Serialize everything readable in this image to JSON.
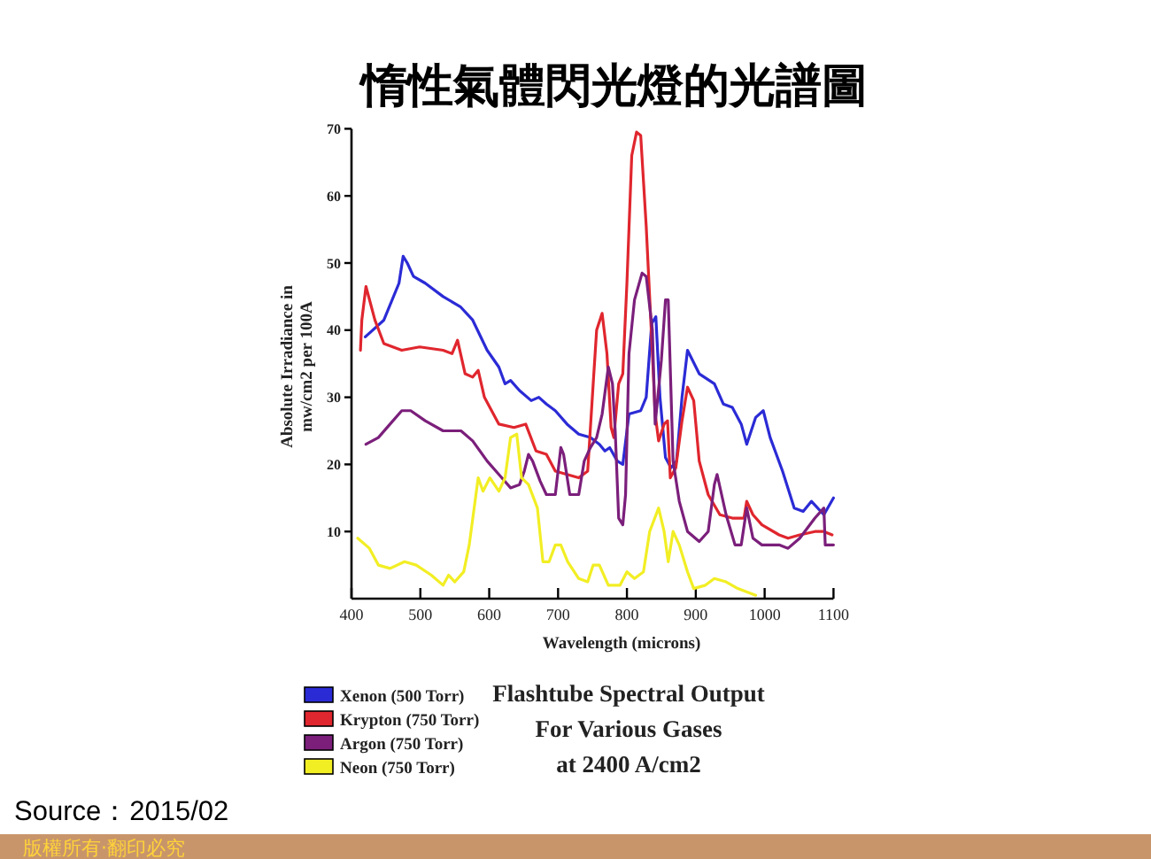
{
  "chart_data": {
    "type": "line",
    "title": "惰性氣體閃光燈的光譜圖",
    "subtitle": "Flashtube Spectral Output\nFor Various Gases\nat 2400 A/cm2",
    "xlabel": "Wavelength (microns)",
    "ylabel": "Absolute Irradiance in\nmw/cm2 per 100A",
    "xlim": [
      400,
      1100
    ],
    "xticks": [
      400,
      500,
      600,
      700,
      800,
      900,
      1000,
      1100
    ],
    "ylim": [
      0,
      70
    ],
    "yticks": [
      10,
      20,
      30,
      40,
      50,
      60,
      70
    ],
    "legend": "bottom left",
    "marker": "none",
    "line_style": "solid",
    "annotations": [
      "Source：2015/02",
      "版權所有‧翻印必究"
    ],
    "series": [
      {
        "name": "Xenon (500 Torr)",
        "color": "#2b2bd6",
        "x": [
          420,
          447,
          469,
          475,
          481,
          490,
          507,
          533,
          558,
          576,
          597,
          614,
          623,
          631,
          644,
          661,
          672,
          683,
          696,
          713,
          730,
          747,
          760,
          768,
          775,
          786,
          794,
          803,
          820,
          828,
          836,
          842,
          848,
          856,
          864,
          872,
          880,
          888,
          905,
          927,
          940,
          953,
          966,
          974,
          987,
          998,
          1008,
          1026,
          1043,
          1056,
          1068,
          1086,
          1100
        ],
        "values": [
          39,
          41.5,
          47,
          51,
          50,
          48,
          47,
          45,
          43.5,
          41.5,
          37,
          34.5,
          32,
          32.5,
          31,
          29.5,
          30,
          29,
          28,
          26,
          24.5,
          24,
          23,
          22,
          22.5,
          20.5,
          20,
          27.5,
          28,
          30,
          41,
          42,
          30,
          21,
          19.5,
          20.5,
          30,
          37,
          33.5,
          32,
          29,
          28.5,
          26,
          23,
          27,
          28,
          24,
          19,
          13.5,
          13,
          14.5,
          12.5,
          15
        ]
      },
      {
        "name": "Krypton (750 Torr)",
        "color": "#e0262e",
        "x": [
          413,
          415,
          421,
          434,
          447,
          473,
          499,
          533,
          546,
          554,
          565,
          576,
          584,
          593,
          614,
          636,
          653,
          668,
          683,
          696,
          730,
          743,
          751,
          756,
          764,
          771,
          777,
          781,
          788,
          794,
          800,
          807,
          814,
          820,
          828,
          837,
          841,
          846,
          854,
          859,
          863,
          871,
          880,
          888,
          897,
          905,
          918,
          935,
          953,
          970,
          974,
          983,
          996,
          1021,
          1034,
          1051,
          1073,
          1086,
          1098
        ],
        "values": [
          37,
          41.5,
          46.5,
          41.5,
          38,
          37,
          37.5,
          37,
          36.5,
          38.5,
          33.5,
          33,
          34,
          30,
          26,
          25.5,
          26,
          22,
          21.5,
          19,
          18,
          19,
          32,
          40,
          42.5,
          36.5,
          25.5,
          24,
          32,
          33.5,
          47,
          66,
          69.5,
          69,
          55.5,
          36.5,
          27.5,
          23.5,
          26,
          26.5,
          18,
          19.5,
          26.5,
          31.5,
          29.5,
          20.5,
          15.5,
          12.5,
          12,
          12,
          14.5,
          12.5,
          11,
          9.5,
          9,
          9.5,
          10,
          10,
          9.5
        ]
      },
      {
        "name": "Argon (750 Torr)",
        "color": "#7b1f7b",
        "x": [
          421,
          439,
          456,
          473,
          486,
          507,
          533,
          559,
          576,
          597,
          614,
          631,
          644,
          651,
          657,
          663,
          674,
          683,
          696,
          704,
          708,
          717,
          730,
          738,
          747,
          756,
          764,
          773,
          779,
          783,
          788,
          794,
          798,
          803,
          811,
          822,
          828,
          837,
          841,
          850,
          856,
          860,
          867,
          876,
          888,
          905,
          918,
          927,
          931,
          944,
          957,
          966,
          974,
          983,
          996,
          1021,
          1034,
          1051,
          1073,
          1086,
          1088,
          1100
        ],
        "values": [
          23,
          24,
          26,
          28,
          28,
          26.5,
          25,
          25,
          23.5,
          20.5,
          18.5,
          16.5,
          17,
          19,
          21.5,
          20.5,
          17.5,
          15.5,
          15.5,
          22.5,
          21.5,
          15.5,
          15.5,
          20.5,
          22.5,
          24,
          27.5,
          34.5,
          32,
          25,
          12,
          11,
          15.5,
          36.5,
          44.5,
          48.5,
          48,
          40,
          26,
          35.5,
          44.5,
          44.5,
          20.5,
          14.5,
          10,
          8.5,
          10,
          17,
          18.5,
          12.5,
          8,
          8,
          13.5,
          9,
          8,
          8,
          7.5,
          9,
          12,
          13.5,
          8,
          8
        ]
      },
      {
        "name": "Neon (750 Torr)",
        "color": "#f2ee24",
        "x": [
          409,
          426,
          439,
          456,
          477,
          494,
          516,
          533,
          541,
          550,
          563,
          571,
          584,
          591,
          601,
          614,
          623,
          631,
          640,
          647,
          657,
          670,
          678,
          687,
          696,
          704,
          714,
          730,
          743,
          751,
          760,
          773,
          790,
          800,
          811,
          824,
          833,
          846,
          854,
          860,
          867,
          876,
          888,
          897,
          914,
          927,
          944,
          961,
          987
        ],
        "values": [
          9,
          7.5,
          5,
          4.5,
          5.5,
          5,
          3.5,
          2,
          3.5,
          2.5,
          4,
          8,
          18,
          16,
          18,
          16,
          18,
          24,
          24.5,
          18,
          17,
          13.5,
          5.5,
          5.5,
          8,
          8,
          5.5,
          3,
          2.5,
          5,
          5,
          2,
          2,
          4,
          3,
          4,
          10,
          13.5,
          10,
          5.5,
          10,
          8,
          4,
          1.5,
          2,
          3,
          2.5,
          1.5,
          0.5
        ]
      }
    ]
  }
}
